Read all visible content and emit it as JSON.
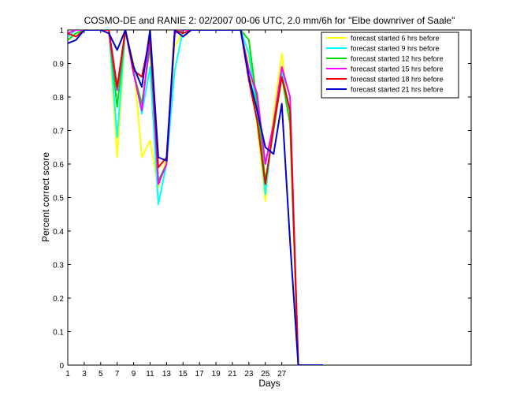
{
  "chart_data": {
    "type": "line",
    "title": "COSMO-DE and RANIE 2: 02/2007 00-06 UTC, 2.0 mm/6h for \"Elbe downriver of Saale\"",
    "xlabel": "Days",
    "ylabel": "Percent correct score",
    "xlim": [
      1,
      50
    ],
    "ylim": [
      0,
      1
    ],
    "xticks": [
      1,
      3,
      5,
      7,
      9,
      11,
      13,
      15,
      17,
      19,
      21,
      23,
      25,
      27
    ],
    "yticks": [
      0,
      0.1,
      0.2,
      0.3,
      0.4,
      0.5,
      0.6,
      0.7,
      0.8,
      0.9,
      1
    ],
    "legend_position": "top-right",
    "grid": false,
    "x": [
      1,
      2,
      3,
      4,
      5,
      6,
      7,
      8,
      9,
      10,
      11,
      12,
      13,
      14,
      15,
      16,
      17,
      18,
      19,
      20,
      21,
      22,
      23,
      24,
      25,
      26,
      27,
      28,
      29,
      30,
      31,
      32
    ],
    "series": [
      {
        "name": "forecast started 6 hrs before",
        "color": "#ffff00",
        "values": [
          0.99,
          1,
          1,
          1,
          1,
          1,
          0.62,
          1,
          0.9,
          0.62,
          0.67,
          0.53,
          0.62,
          0.95,
          1,
          1,
          1,
          1,
          1,
          1,
          1,
          1,
          0.9,
          0.72,
          0.49,
          0.75,
          0.93,
          0.72,
          0,
          0,
          0,
          0
        ]
      },
      {
        "name": "forecast started 9 hrs before",
        "color": "#00ffff",
        "values": [
          0.98,
          1,
          1,
          1,
          1,
          1,
          0.68,
          1,
          0.88,
          0.75,
          0.89,
          0.48,
          0.6,
          0.88,
          1,
          1,
          1,
          1,
          1,
          1,
          1,
          1,
          0.93,
          0.75,
          0.51,
          0.72,
          0.88,
          0.75,
          0,
          0,
          0,
          0
        ]
      },
      {
        "name": "forecast started 12 hrs before",
        "color": "#00dd00",
        "values": [
          0.97,
          0.99,
          1,
          1,
          1,
          1,
          0.77,
          1,
          0.87,
          0.78,
          0.95,
          0.55,
          0.6,
          1,
          1,
          1,
          1,
          1,
          1,
          1,
          1,
          1,
          0.97,
          0.78,
          0.55,
          0.7,
          0.86,
          0.72,
          0,
          0,
          0,
          0
        ]
      },
      {
        "name": "forecast started 15 hrs before",
        "color": "#ff00ff",
        "values": [
          0.99,
          1,
          1,
          1,
          1,
          0.99,
          0.82,
          1,
          0.87,
          0.76,
          0.98,
          0.54,
          0.6,
          0.99,
          1,
          1,
          1,
          1,
          1,
          1,
          1,
          1,
          0.88,
          0.81,
          0.6,
          0.72,
          0.89,
          0.8,
          0,
          0,
          0,
          0
        ]
      },
      {
        "name": "forecast started 18 hrs before",
        "color": "#ee0000",
        "values": [
          0.99,
          0.98,
          1,
          1,
          1,
          1,
          0.83,
          1,
          0.88,
          0.86,
          0.98,
          0.59,
          0.62,
          1,
          0.99,
          1,
          1,
          1,
          1,
          1,
          1,
          1,
          0.85,
          0.73,
          0.54,
          0.71,
          0.86,
          0.76,
          0,
          0,
          0,
          0
        ]
      },
      {
        "name": "forecast started 21 hrs before",
        "color": "#0000cc",
        "values": [
          0.96,
          0.97,
          1,
          1,
          1,
          0.99,
          0.94,
          1,
          0.89,
          0.83,
          1,
          0.62,
          0.61,
          1,
          0.98,
          1,
          1,
          1,
          1,
          1,
          1,
          1,
          0.86,
          0.76,
          0.65,
          0.63,
          0.78,
          0.37,
          0,
          0,
          0,
          0
        ]
      }
    ]
  }
}
